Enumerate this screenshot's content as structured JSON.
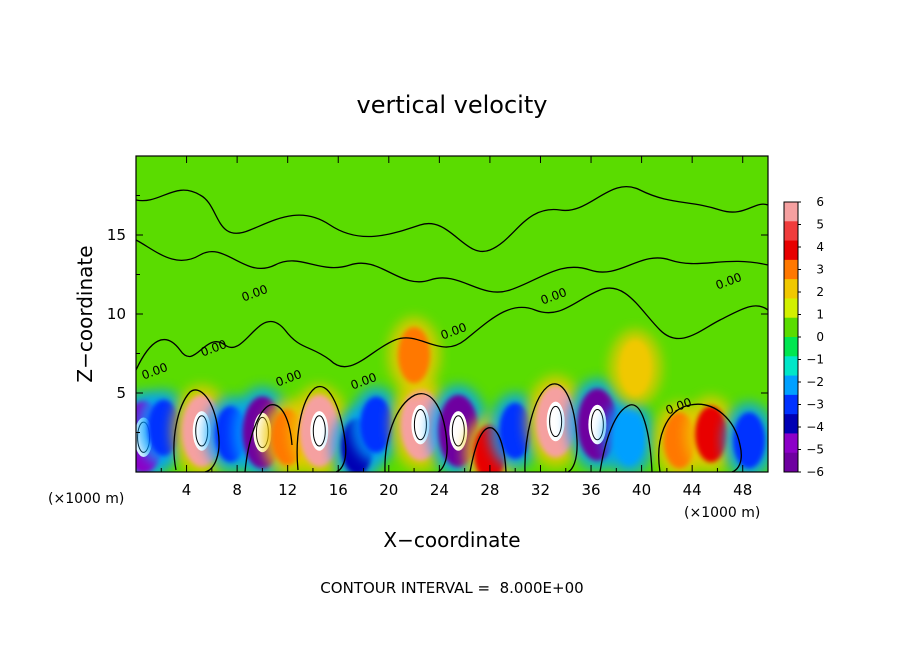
{
  "chart_data": {
    "type": "heatmap",
    "title": "vertical velocity",
    "xlabel": "X−coordinate",
    "ylabel": "Z−coordinate",
    "x_unit_left": "(×1000 m)",
    "x_unit_right": "(×1000 m)",
    "xlim": [
      0,
      50
    ],
    "ylim": [
      0,
      20
    ],
    "x_ticks": [
      "4",
      "8",
      "12",
      "16",
      "20",
      "24",
      "28",
      "32",
      "36",
      "40",
      "44",
      "48"
    ],
    "x_tick_values": [
      4,
      8,
      12,
      16,
      20,
      24,
      28,
      32,
      36,
      40,
      44,
      48
    ],
    "y_ticks": [
      "5",
      "10",
      "15"
    ],
    "y_tick_values": [
      5,
      10,
      15
    ],
    "contour_labels": [
      "0.00",
      "0.00",
      "0.00",
      "0.00",
      "0.00",
      "0.00",
      "0.00",
      "0.00",
      "0.00"
    ],
    "contour_interval_text": "CONTOUR INTERVAL =  8.000E+00",
    "colorbar": {
      "labels": [
        "6",
        "5",
        "4",
        "3",
        "2",
        "1",
        "0",
        "−1",
        "−2",
        "−3",
        "−4",
        "−5",
        "−6"
      ],
      "values": [
        6,
        5,
        4,
        3,
        2,
        1,
        0,
        -1,
        -2,
        -3,
        -4,
        -5,
        -6
      ],
      "colors": [
        "#f5a0a0",
        "#f03c3c",
        "#e80000",
        "#ff7800",
        "#f0c800",
        "#d2f000",
        "#5adc00",
        "#00e650",
        "#00e6c8",
        "#00a0ff",
        "#0032ff",
        "#0000b4",
        "#8c00c8",
        "#6e00a0"
      ]
    },
    "cells": [
      {
        "x": 0.6,
        "z": 2.2,
        "w": -5.5
      },
      {
        "x": 2.2,
        "z": 2.8,
        "w": -3.5
      },
      {
        "x": 5.2,
        "z": 2.6,
        "w": 6.0
      },
      {
        "x": 7.5,
        "z": 2.4,
        "w": -3.0
      },
      {
        "x": 10.0,
        "z": 2.5,
        "w": -6.0
      },
      {
        "x": 12.0,
        "z": 2.2,
        "w": 3.0
      },
      {
        "x": 14.5,
        "z": 2.6,
        "w": 6.0
      },
      {
        "x": 17.5,
        "z": 1.6,
        "w": -4.0
      },
      {
        "x": 19.0,
        "z": 3.0,
        "w": -3.0
      },
      {
        "x": 22.5,
        "z": 3.0,
        "w": 6.0
      },
      {
        "x": 25.5,
        "z": 2.6,
        "w": -6.0
      },
      {
        "x": 28.0,
        "z": 1.2,
        "w": 4.5
      },
      {
        "x": 30.0,
        "z": 2.6,
        "w": -3.5
      },
      {
        "x": 33.2,
        "z": 3.2,
        "w": 6.0
      },
      {
        "x": 36.5,
        "z": 3.0,
        "w": -6.0
      },
      {
        "x": 39.0,
        "z": 2.2,
        "w": -2.5
      },
      {
        "x": 43.0,
        "z": 2.0,
        "w": 3.5
      },
      {
        "x": 45.5,
        "z": 2.4,
        "w": 4.0
      },
      {
        "x": 48.5,
        "z": 2.0,
        "w": -3.5
      },
      {
        "x": 22.0,
        "z": 7.4,
        "w": 3.0
      },
      {
        "x": 39.5,
        "z": 6.6,
        "w": 2.0
      }
    ]
  }
}
